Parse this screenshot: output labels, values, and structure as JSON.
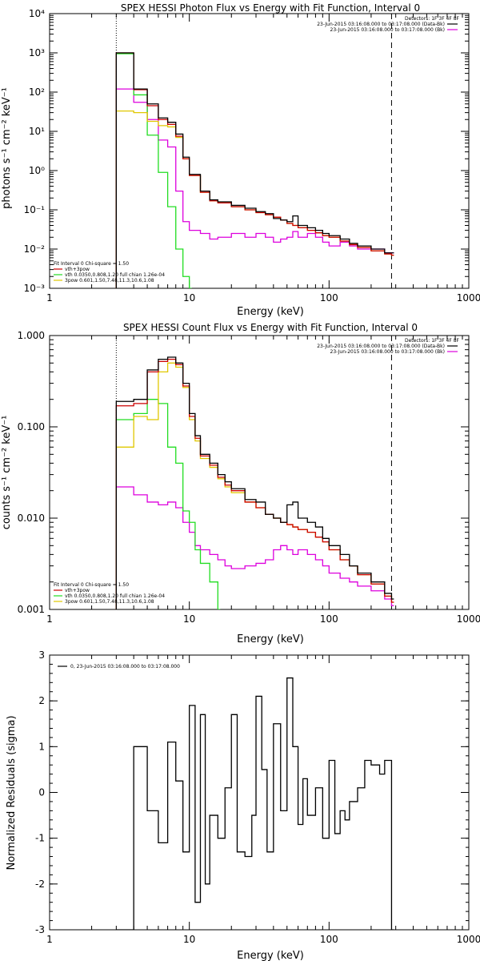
{
  "colors": {
    "data": "#000000",
    "total": "#cc0000",
    "thermal": "#22dd22",
    "powerlaw": "#e0c800",
    "background": "#dd00dd"
  },
  "chart_data": [
    {
      "type": "line",
      "title": "SPEX HESSI Photon Flux vs Energy with Fit Function, Interval 0",
      "xlabel": "Energy (keV)",
      "ylabel": "photons s⁻¹ cm⁻² keV⁻¹",
      "xscale": "log",
      "yscale": "log",
      "xlim": [
        1,
        1000
      ],
      "ylim": [
        0.001,
        10000
      ],
      "xticks": [
        1,
        10,
        100,
        1000
      ],
      "xtick_labels": [
        "1",
        "10",
        "100",
        "1000"
      ],
      "yticks": [
        0.001,
        0.01,
        0.1,
        1,
        10,
        100,
        1000,
        10000
      ],
      "ytick_labels": [
        "10⁻³",
        "10⁻²",
        "10⁻¹",
        "10⁰",
        "10¹",
        "10²",
        "10³",
        "10⁴"
      ],
      "vlines": [
        {
          "x": 3,
          "style": "dotted"
        },
        {
          "x": 280,
          "style": "dashed"
        }
      ],
      "legend_top": {
        "header": "Detectors: 1F 3F 4F 8F",
        "entries": [
          {
            "text": "23-Jun-2015 03:16:08.000 to 03:17:08.000 (Data-Bk)",
            "color": "#000000"
          },
          {
            "text": "23-Jun-2015 03:16:08.000 to 03:17:08.000 (Bk)",
            "color": "#dd00dd"
          }
        ]
      },
      "legend_bottom": {
        "header": "Fit Interval 0   Chi-square = 1.50",
        "entries": [
          {
            "text": "vth+3pow",
            "color": "#cc0000"
          },
          {
            "text": "vth 0.0350,0.808,1.20  full chian 1.26e-04",
            "color": "#22dd22"
          },
          {
            "text": "3pow 0.601,1.50,7.48,11.3,10.6,1.08",
            "color": "#e0c800"
          }
        ]
      },
      "series": [
        {
          "key": "data",
          "x": [
            3,
            4,
            5,
            6,
            7,
            8,
            9,
            10,
            12,
            14,
            16,
            20,
            25,
            30,
            35,
            40,
            45,
            50,
            55,
            60,
            70,
            80,
            90,
            100,
            120,
            140,
            160,
            200,
            250,
            280
          ],
          "values": [
            1000,
            120,
            50,
            22,
            17,
            8.5,
            2.2,
            0.8,
            0.3,
            0.18,
            0.16,
            0.13,
            0.11,
            0.09,
            0.08,
            0.06,
            0.055,
            0.05,
            0.07,
            0.04,
            0.035,
            0.03,
            0.025,
            0.022,
            0.018,
            0.014,
            0.012,
            0.01,
            0.008,
            0.008
          ]
        },
        {
          "key": "total",
          "x": [
            3,
            4,
            5,
            6,
            7,
            8,
            9,
            10,
            12,
            14,
            16,
            20,
            25,
            30,
            35,
            40,
            45,
            50,
            55,
            60,
            70,
            80,
            90,
            100,
            120,
            140,
            160,
            200,
            250,
            280
          ],
          "values": [
            1000,
            115,
            45,
            20,
            15,
            7.5,
            2,
            0.75,
            0.28,
            0.17,
            0.15,
            0.12,
            0.1,
            0.085,
            0.075,
            0.065,
            0.055,
            0.045,
            0.04,
            0.035,
            0.03,
            0.026,
            0.022,
            0.02,
            0.016,
            0.013,
            0.011,
            0.009,
            0.0075,
            0.007
          ]
        },
        {
          "key": "thermal",
          "x": [
            3,
            4,
            5,
            6,
            7,
            8,
            9,
            10
          ],
          "values": [
            950,
            85,
            8,
            0.9,
            0.12,
            0.01,
            0.002,
            0.0008
          ]
        },
        {
          "key": "powerlaw",
          "x": [
            3,
            4,
            5,
            6,
            7,
            8,
            9,
            10,
            12,
            14,
            16,
            20,
            25,
            30,
            35,
            40,
            45,
            50,
            55,
            60,
            70,
            80,
            90,
            100,
            120,
            140,
            160,
            200,
            250,
            280
          ],
          "values": [
            33,
            30,
            18,
            14,
            13,
            7,
            2,
            0.75,
            0.28,
            0.17,
            0.15,
            0.12,
            0.1,
            0.085,
            0.075,
            0.065,
            0.055,
            0.045,
            0.04,
            0.035,
            0.03,
            0.026,
            0.022,
            0.02,
            0.016,
            0.013,
            0.011,
            0.009,
            0.0075,
            0.007
          ]
        },
        {
          "key": "background",
          "x": [
            3,
            4,
            5,
            6,
            7,
            8,
            9,
            10,
            12,
            14,
            16,
            20,
            25,
            30,
            35,
            40,
            45,
            50,
            55,
            60,
            70,
            80,
            90,
            100,
            120,
            140,
            160,
            200,
            250,
            280
          ],
          "values": [
            120,
            55,
            20,
            6,
            4,
            0.3,
            0.05,
            0.03,
            0.025,
            0.018,
            0.02,
            0.025,
            0.02,
            0.025,
            0.02,
            0.015,
            0.018,
            0.02,
            0.028,
            0.02,
            0.025,
            0.02,
            0.015,
            0.012,
            0.015,
            0.012,
            0.01,
            0.01,
            0.008,
            0.008
          ]
        }
      ]
    },
    {
      "type": "line",
      "title": "SPEX HESSI Count Flux vs Energy with Fit Function, Interval 0",
      "xlabel": "Energy (keV)",
      "ylabel": "counts s⁻¹ cm⁻² keV⁻¹",
      "xscale": "log",
      "yscale": "log",
      "xlim": [
        1,
        1000
      ],
      "ylim": [
        0.001,
        1
      ],
      "xticks": [
        1,
        10,
        100,
        1000
      ],
      "xtick_labels": [
        "1",
        "10",
        "100",
        "1000"
      ],
      "yticks": [
        0.001,
        0.01,
        0.1,
        1
      ],
      "ytick_labels": [
        "0.001",
        "0.010",
        "0.100",
        "1.000"
      ],
      "vlines": [
        {
          "x": 3,
          "style": "dotted"
        },
        {
          "x": 280,
          "style": "dashed"
        }
      ],
      "legend_top": {
        "header": "Detectors: 1F 3F 4F 8F",
        "entries": [
          {
            "text": "23-Jun-2015 03:16:08.000 to 03:17:08.000 (Data-Bk)",
            "color": "#000000"
          },
          {
            "text": "23-Jun-2015 03:16:08.000 to 03:17:08.000 (Bk)",
            "color": "#dd00dd"
          }
        ]
      },
      "legend_bottom": {
        "header": "Fit Interval 0   Chi-square = 1.50",
        "entries": [
          {
            "text": "vth+3pow",
            "color": "#cc0000"
          },
          {
            "text": "vth 0.0350,0.808,1.20  full chian 1.26e-04",
            "color": "#22dd22"
          },
          {
            "text": "3pow 0.601,1.50,7.48,11.3,10.6,1.08",
            "color": "#e0c800"
          }
        ]
      },
      "series": [
        {
          "key": "data",
          "x": [
            3,
            4,
            5,
            6,
            7,
            8,
            9,
            10,
            11,
            12,
            14,
            16,
            18,
            20,
            25,
            30,
            35,
            40,
            45,
            50,
            55,
            60,
            70,
            80,
            90,
            100,
            120,
            140,
            160,
            200,
            250,
            280
          ],
          "values": [
            0.19,
            0.2,
            0.42,
            0.55,
            0.58,
            0.5,
            0.3,
            0.14,
            0.08,
            0.05,
            0.04,
            0.03,
            0.025,
            0.021,
            0.016,
            0.015,
            0.011,
            0.01,
            0.009,
            0.014,
            0.015,
            0.01,
            0.009,
            0.008,
            0.006,
            0.005,
            0.004,
            0.003,
            0.0025,
            0.002,
            0.0015,
            0.0013
          ]
        },
        {
          "key": "total",
          "x": [
            3,
            4,
            5,
            6,
            7,
            8,
            9,
            10,
            11,
            12,
            14,
            16,
            18,
            20,
            25,
            30,
            35,
            40,
            45,
            50,
            55,
            60,
            70,
            80,
            90,
            100,
            120,
            140,
            160,
            200,
            250,
            280
          ],
          "values": [
            0.17,
            0.18,
            0.4,
            0.52,
            0.55,
            0.48,
            0.28,
            0.13,
            0.075,
            0.048,
            0.038,
            0.028,
            0.023,
            0.02,
            0.015,
            0.013,
            0.011,
            0.01,
            0.009,
            0.0085,
            0.008,
            0.0075,
            0.007,
            0.0062,
            0.0055,
            0.0045,
            0.0035,
            0.003,
            0.0024,
            0.0019,
            0.0014,
            0.0012
          ]
        },
        {
          "key": "thermal",
          "x": [
            3,
            4,
            5,
            6,
            7,
            8,
            9,
            10,
            11,
            12,
            14,
            16
          ],
          "values": [
            0.12,
            0.14,
            0.2,
            0.18,
            0.06,
            0.04,
            0.012,
            0.009,
            0.0045,
            0.0032,
            0.002,
            0.001
          ]
        },
        {
          "key": "powerlaw",
          "x": [
            3,
            4,
            5,
            6,
            7,
            8,
            9,
            10,
            11,
            12,
            14,
            16,
            18,
            20,
            25,
            30,
            35,
            40,
            45,
            50,
            55,
            60,
            70,
            80,
            90,
            100,
            120,
            140,
            160,
            200,
            250,
            280
          ],
          "values": [
            0.06,
            0.13,
            0.12,
            0.4,
            0.5,
            0.45,
            0.27,
            0.12,
            0.07,
            0.045,
            0.036,
            0.027,
            0.022,
            0.019,
            0.015,
            0.013,
            0.011,
            0.01,
            0.009,
            0.0085,
            0.008,
            0.0075,
            0.007,
            0.0062,
            0.0055,
            0.0045,
            0.0035,
            0.003,
            0.0024,
            0.0019,
            0.0014,
            0.0012
          ]
        },
        {
          "key": "background",
          "x": [
            3,
            4,
            5,
            6,
            7,
            8,
            9,
            10,
            11,
            12,
            14,
            16,
            18,
            20,
            25,
            30,
            35,
            40,
            45,
            50,
            55,
            60,
            70,
            80,
            90,
            100,
            120,
            140,
            160,
            200,
            250,
            280
          ],
          "values": [
            0.022,
            0.018,
            0.015,
            0.014,
            0.015,
            0.013,
            0.009,
            0.007,
            0.005,
            0.0045,
            0.004,
            0.0035,
            0.003,
            0.0028,
            0.003,
            0.0032,
            0.0035,
            0.0045,
            0.005,
            0.0045,
            0.004,
            0.0045,
            0.004,
            0.0035,
            0.003,
            0.0025,
            0.0022,
            0.002,
            0.0018,
            0.0016,
            0.0013,
            0.0011
          ]
        }
      ]
    },
    {
      "type": "line",
      "title": "",
      "xlabel": "Energy (keV)",
      "ylabel": "Normalized Residuals (sigma)",
      "xscale": "log",
      "yscale": "linear",
      "xlim": [
        1,
        1000
      ],
      "ylim": [
        -3,
        3
      ],
      "xticks": [
        1,
        10,
        100,
        1000
      ],
      "xtick_labels": [
        "1",
        "10",
        "100",
        "1000"
      ],
      "yticks": [
        -3,
        -2,
        -1,
        0,
        1,
        2,
        3
      ],
      "ytick_labels": [
        "-3",
        "-2",
        "-1",
        "0",
        "1",
        "2",
        "3"
      ],
      "vlines": [],
      "legend_top": {
        "header": "",
        "entries": [
          {
            "text": "0, 23-Jun-2015 03:16:08.000 to 03:17:08.000",
            "color": "#000000"
          }
        ]
      },
      "legend_bottom": {
        "header": "",
        "entries": []
      },
      "series": [
        {
          "key": "data",
          "x": [
            3,
            4,
            5,
            6,
            7,
            8,
            9,
            10,
            11,
            12,
            13,
            14,
            16,
            18,
            20,
            22,
            25,
            28,
            30,
            33,
            36,
            40,
            45,
            50,
            55,
            60,
            65,
            70,
            80,
            90,
            100,
            110,
            120,
            130,
            140,
            160,
            180,
            200,
            230,
            250,
            280
          ],
          "values": [
            -3,
            1,
            -0.4,
            -1.1,
            1.1,
            0.25,
            -1.3,
            1.9,
            -2.4,
            1.7,
            -2,
            -0.5,
            -1,
            0.1,
            1.7,
            -1.3,
            -1.4,
            -0.5,
            2.1,
            0.5,
            -1.3,
            1.5,
            -0.4,
            2.5,
            1,
            -0.7,
            0.3,
            -0.5,
            0.1,
            -1,
            0.7,
            -0.9,
            -0.4,
            -0.6,
            -0.2,
            0.1,
            0.7,
            0.6,
            0.4,
            0.7,
            -3
          ]
        }
      ]
    }
  ]
}
